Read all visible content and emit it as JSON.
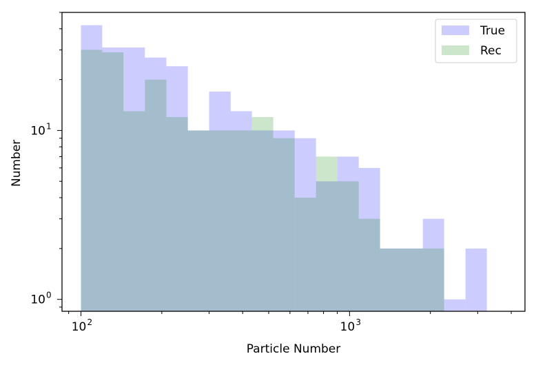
{
  "chart_data": {
    "type": "bar",
    "subtype": "overlaid log-log histogram",
    "xlabel": "Particle Number",
    "ylabel": "Number",
    "xscale": "log",
    "yscale": "log",
    "xlim": [
      85,
      4500
    ],
    "ylim": [
      0.85,
      50
    ],
    "x_ticks": [
      {
        "base": "10",
        "exp": "2",
        "value": 100
      },
      {
        "base": "10",
        "exp": "3",
        "value": 1000
      }
    ],
    "y_ticks": [
      {
        "base": "10",
        "exp": "0",
        "value": 1
      },
      {
        "base": "10",
        "exp": "1",
        "value": 10
      }
    ],
    "bin_edges": [
      100,
      120,
      144,
      173,
      208,
      250,
      300,
      361,
      433,
      520,
      625,
      750,
      901,
      1082,
      1299,
      1560,
      1874,
      2250,
      2702,
      3245
    ],
    "grid": false,
    "legend_position": "top-right",
    "series": [
      {
        "name": "True",
        "color": "#0000ff",
        "alpha": 0.2,
        "values": [
          42,
          31,
          31,
          27,
          24,
          10,
          17,
          13,
          10,
          10,
          9,
          5,
          7,
          6,
          2,
          2,
          3,
          1,
          2
        ]
      },
      {
        "name": "Rec",
        "color": "#008000",
        "alpha": 0.2,
        "values": [
          30,
          29,
          13,
          20,
          12,
          10,
          10,
          10,
          12,
          9,
          4,
          7,
          5,
          3,
          2,
          2,
          2,
          0,
          0
        ]
      }
    ]
  }
}
